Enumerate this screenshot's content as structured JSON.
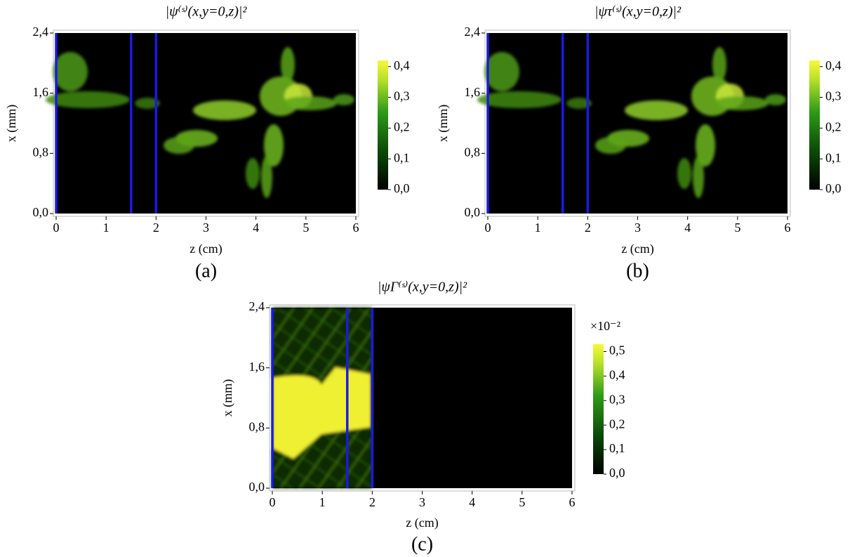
{
  "chart_data": [
    {
      "type": "heatmap",
      "title": "|ψ⁽ˢ⁾(x,y=0,z)|²",
      "panel_label": "(a)",
      "xlabel": "z (cm)",
      "ylabel": "x (mm)",
      "xlim": [
        0,
        6
      ],
      "xticks": [
        0,
        1,
        2,
        3,
        4,
        5,
        6
      ],
      "ylim": [
        0,
        2.4
      ],
      "yticks": [
        {
          "value": 0,
          "label": "0,0"
        },
        {
          "value": 0.8,
          "label": "0,8"
        },
        {
          "value": 1.6,
          "label": "1,6"
        },
        {
          "value": 2.4,
          "label": "2,4"
        }
      ],
      "clim": [
        0,
        0.42
      ],
      "cticks": [
        {
          "value": 0,
          "label": "0,0"
        },
        {
          "value": 0.1,
          "label": "0,1"
        },
        {
          "value": 0.2,
          "label": "0,2"
        },
        {
          "value": 0.3,
          "label": "0,3"
        },
        {
          "value": 0.4,
          "label": "0,4"
        }
      ],
      "vlines": [
        0,
        1.5,
        2
      ],
      "vline_color": "#1a1ae6"
    },
    {
      "type": "heatmap",
      "title": "|ψτ⁽ˢ⁾(x,y=0,z)|²",
      "panel_label": "(b)",
      "xlabel": "z (cm)",
      "ylabel": "x (mm)",
      "xlim": [
        0,
        6
      ],
      "xticks": [
        0,
        1,
        2,
        3,
        4,
        5,
        6
      ],
      "ylim": [
        0,
        2.4
      ],
      "yticks": [
        {
          "value": 0,
          "label": "0,0"
        },
        {
          "value": 0.8,
          "label": "0,8"
        },
        {
          "value": 1.6,
          "label": "1,6"
        },
        {
          "value": 2.4,
          "label": "2,4"
        }
      ],
      "clim": [
        0,
        0.42
      ],
      "cticks": [
        {
          "value": 0,
          "label": "0,0"
        },
        {
          "value": 0.1,
          "label": "0,1"
        },
        {
          "value": 0.2,
          "label": "0,2"
        },
        {
          "value": 0.3,
          "label": "0,3"
        },
        {
          "value": 0.4,
          "label": "0,4"
        }
      ],
      "vlines": [
        0,
        1.5,
        2
      ],
      "vline_color": "#1a1ae6"
    },
    {
      "type": "heatmap",
      "title": "|ψΓ⁽ˢ⁾(x,y=0,z)|²",
      "panel_label": "(c)",
      "xlabel": "z (cm)",
      "ylabel": "x (mm)",
      "xlim": [
        0,
        6
      ],
      "xticks": [
        0,
        1,
        2,
        3,
        4,
        5,
        6
      ],
      "ylim": [
        0,
        2.4
      ],
      "yticks": [
        {
          "value": 0,
          "label": "0,0"
        },
        {
          "value": 0.8,
          "label": "0,8"
        },
        {
          "value": 1.6,
          "label": "1,6"
        },
        {
          "value": 2.4,
          "label": "2,4"
        }
      ],
      "clim": [
        0,
        0.53
      ],
      "colorbar_multiplier": "×10⁻²",
      "cticks": [
        {
          "value": 0,
          "label": "0,0"
        },
        {
          "value": 0.1,
          "label": "0,1"
        },
        {
          "value": 0.2,
          "label": "0,2"
        },
        {
          "value": 0.3,
          "label": "0,3"
        },
        {
          "value": 0.4,
          "label": "0,4"
        },
        {
          "value": 0.5,
          "label": "0,5"
        }
      ],
      "vlines": [
        0,
        1.5,
        2
      ],
      "vline_color": "#1a1ae6"
    }
  ]
}
